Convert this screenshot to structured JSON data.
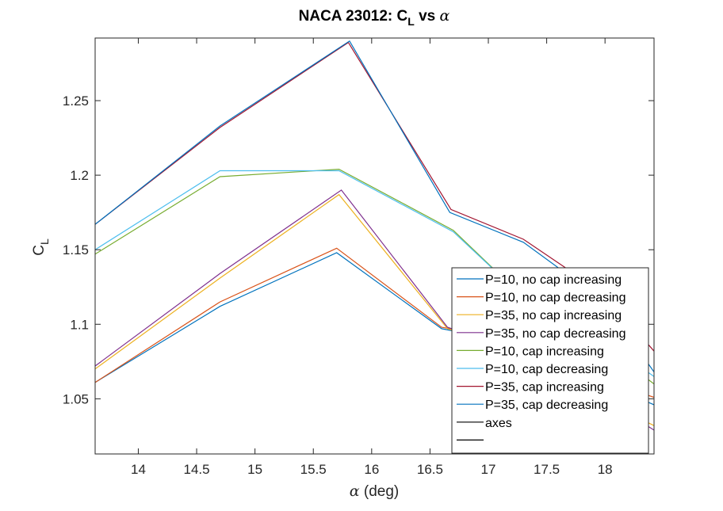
{
  "chart_data": {
    "type": "line",
    "title": "NACA 23012: C",
    "title_sub": "L",
    "title_tail": " vs ",
    "title_symbol": "α",
    "xlabel_symbol": "α",
    "xlabel": " (deg)",
    "ylabel": "C",
    "ylabel_sub": "L",
    "xlim": [
      13.63,
      18.42
    ],
    "ylim": [
      1.013,
      1.292
    ],
    "xticks": [
      "14",
      "14.5",
      "15",
      "15.5",
      "16",
      "16.5",
      "17",
      "17.5",
      "18"
    ],
    "yticks": [
      "1.05",
      "1.1",
      "1.15",
      "1.2",
      "1.25"
    ],
    "legend_position": "bottom-right",
    "series": [
      {
        "name": "P=10, no cap increasing",
        "color": "#0072BD",
        "x": [
          13.63,
          14.7,
          15.7,
          16.6,
          17.2,
          18.0,
          18.42
        ],
        "y": [
          1.061,
          1.112,
          1.148,
          1.097,
          1.088,
          1.06,
          1.046
        ]
      },
      {
        "name": "P=10, no cap decreasing",
        "color": "#D95319",
        "x": [
          13.63,
          14.7,
          15.7,
          16.6,
          17.2,
          18.0,
          18.42
        ],
        "y": [
          1.061,
          1.115,
          1.151,
          1.098,
          1.09,
          1.062,
          1.051
        ]
      },
      {
        "name": "P=35, no cap increasing",
        "color": "#EDB120",
        "x": [
          13.63,
          14.7,
          15.72,
          16.65,
          17.3,
          18.0,
          18.42
        ],
        "y": [
          1.07,
          1.131,
          1.187,
          1.097,
          1.08,
          1.048,
          1.032
        ]
      },
      {
        "name": "P=35, no cap decreasing",
        "color": "#7E2F8E",
        "x": [
          13.63,
          14.7,
          15.74,
          16.65,
          17.3,
          18.0,
          18.42
        ],
        "y": [
          1.072,
          1.134,
          1.19,
          1.098,
          1.081,
          1.05,
          1.029
        ]
      },
      {
        "name": "P=10, cap increasing",
        "color": "#77AC30",
        "x": [
          13.63,
          14.7,
          15.72,
          16.7,
          17.3,
          18.0,
          18.42
        ],
        "y": [
          1.147,
          1.199,
          1.204,
          1.163,
          1.118,
          1.085,
          1.06
        ]
      },
      {
        "name": "P=10, cap decreasing",
        "color": "#4DBEEE",
        "x": [
          13.63,
          14.7,
          15.72,
          16.7,
          17.3,
          18.0,
          18.42
        ],
        "y": [
          1.15,
          1.203,
          1.203,
          1.162,
          1.118,
          1.088,
          1.065
        ]
      },
      {
        "name": "P=35, cap increasing",
        "color": "#A2142F",
        "x": [
          13.63,
          14.7,
          15.8,
          16.68,
          17.3,
          18.0,
          18.42
        ],
        "y": [
          1.167,
          1.232,
          1.289,
          1.177,
          1.157,
          1.12,
          1.082
        ]
      },
      {
        "name": "P=35, cap decreasing",
        "color": "#0072BD",
        "x": [
          13.63,
          14.7,
          15.81,
          16.67,
          17.3,
          18.0,
          18.42
        ],
        "y": [
          1.167,
          1.233,
          1.29,
          1.175,
          1.155,
          1.115,
          1.068
        ]
      },
      {
        "name": "axes",
        "color": "#000000",
        "x": [],
        "y": []
      },
      {
        "name": "",
        "color": "#000000",
        "x": [],
        "y": []
      }
    ]
  }
}
